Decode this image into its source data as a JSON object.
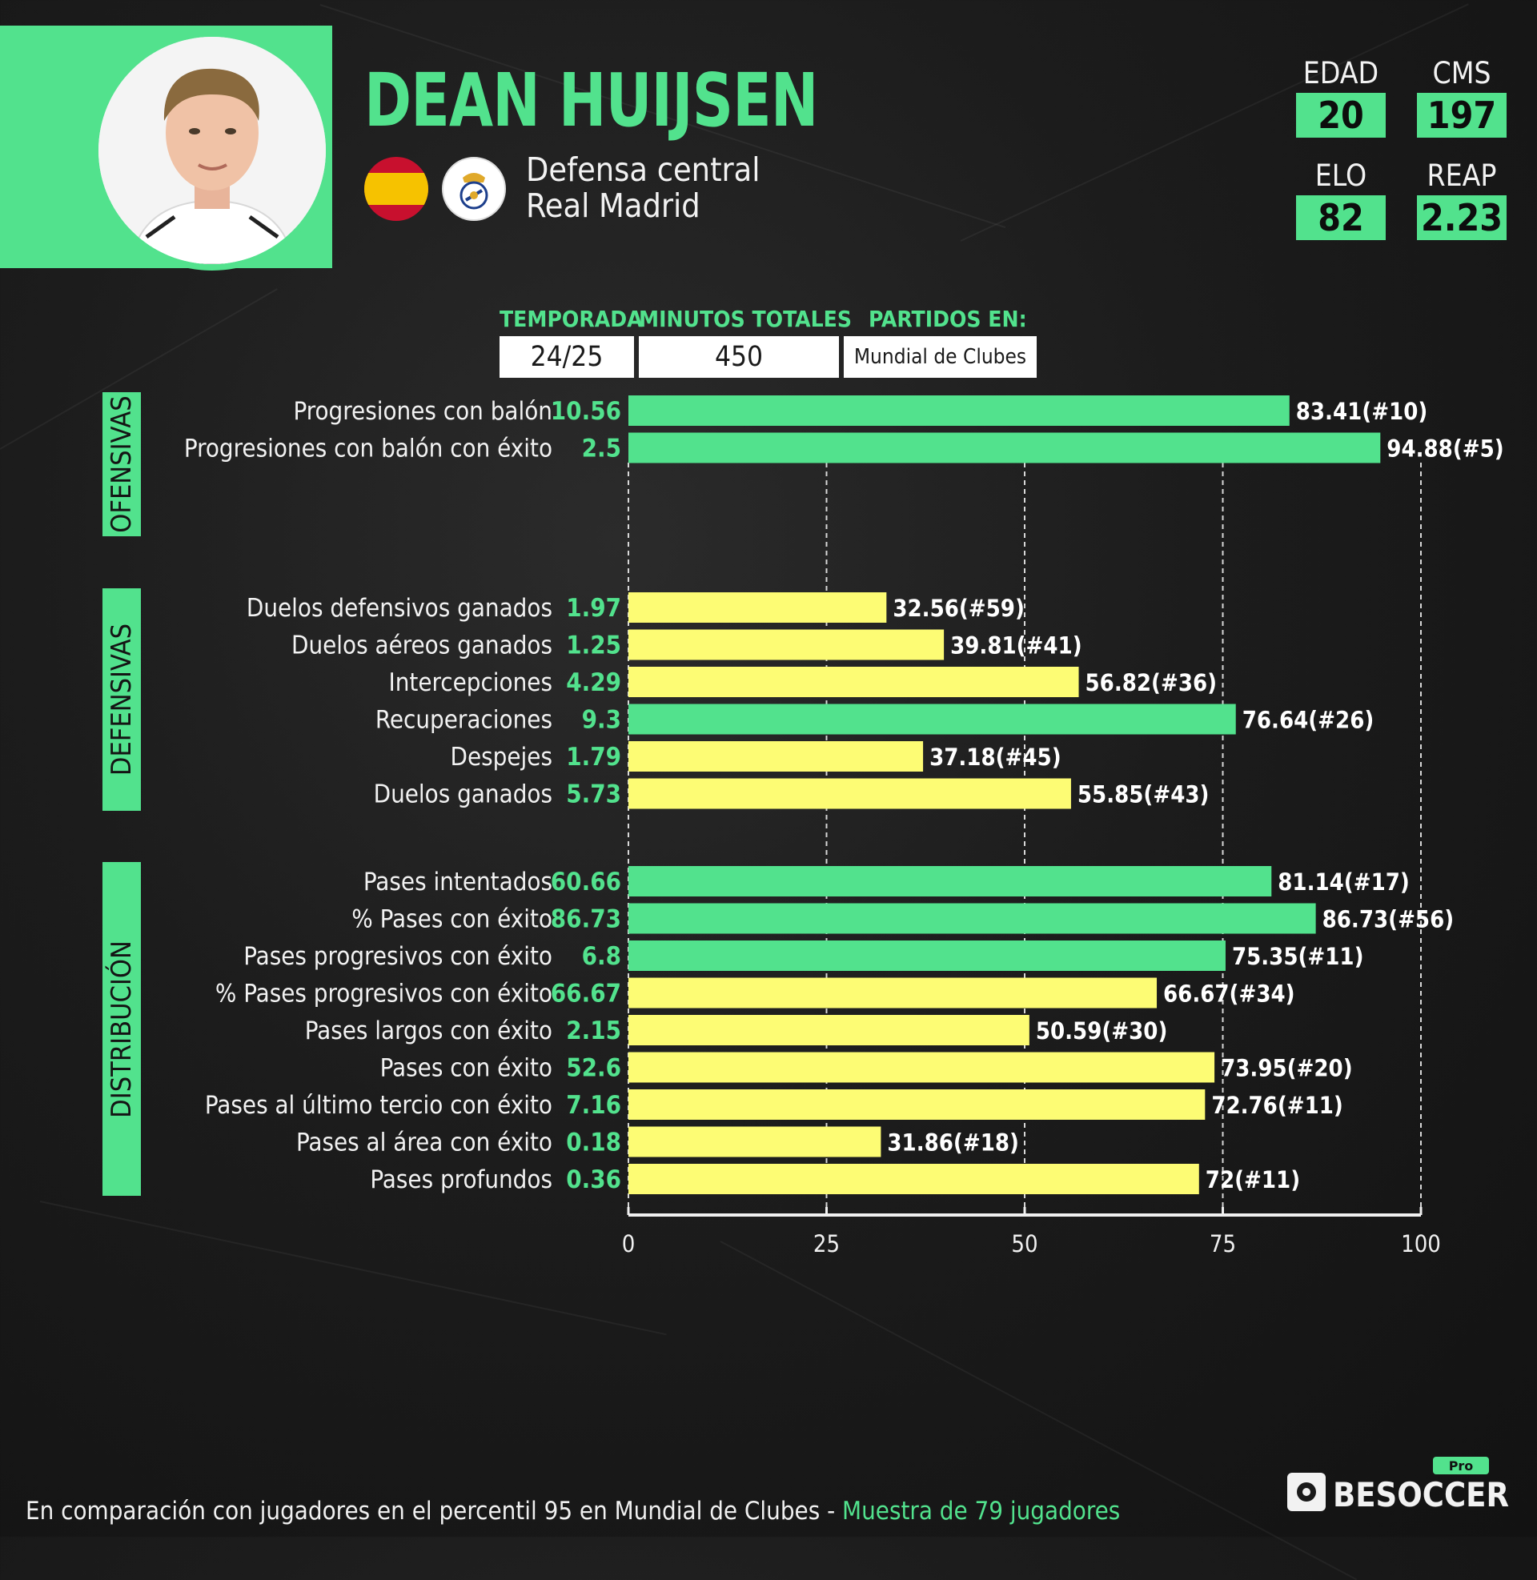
{
  "player": {
    "name": "DEAN HUIJSEN",
    "position": "Defensa central",
    "club": "Real Madrid"
  },
  "stats": {
    "edad": {
      "label": "EDAD",
      "value": "20"
    },
    "cms": {
      "label": "CMS",
      "value": "197"
    },
    "elo": {
      "label": "ELO",
      "value": "82"
    },
    "reap": {
      "label": "REAP",
      "value": "2.23"
    }
  },
  "season_info": {
    "season_header": "TEMPORADA",
    "season_value": "24/25",
    "minutes_header": "MINUTOS TOTALES",
    "minutes_value": "450",
    "matches_header": "PARTIDOS EN:",
    "matches_value": "Mundial de Clubes"
  },
  "chart_data": {
    "type": "bar",
    "orientation": "horizontal",
    "xlim": [
      0,
      100
    ],
    "xticks": [
      0,
      25,
      50,
      75,
      100
    ],
    "grid": "vertical dashed",
    "colors": {
      "top": "#52e28d",
      "other": "#fdfc74"
    },
    "groups": [
      {
        "name": "OFENSIVAS",
        "metrics": [
          {
            "label": "Progresiones con balón",
            "raw": "10.56",
            "percentile": 83.41,
            "rank": "(#10)",
            "color": "green"
          },
          {
            "label": "Progresiones con balón con éxito",
            "raw": "2.5",
            "percentile": 94.88,
            "rank": "(#5)",
            "color": "green"
          }
        ]
      },
      {
        "name": "DEFENSIVAS",
        "metrics": [
          {
            "label": "Duelos defensivos ganados",
            "raw": "1.97",
            "percentile": 32.56,
            "rank": "(#59)",
            "color": "yellow"
          },
          {
            "label": "Duelos aéreos ganados",
            "raw": "1.25",
            "percentile": 39.81,
            "rank": "(#41)",
            "color": "yellow"
          },
          {
            "label": "Intercepciones",
            "raw": "4.29",
            "percentile": 56.82,
            "rank": "(#36)",
            "color": "yellow"
          },
          {
            "label": "Recuperaciones",
            "raw": "9.3",
            "percentile": 76.64,
            "rank": "(#26)",
            "color": "green"
          },
          {
            "label": "Despejes",
            "raw": "1.79",
            "percentile": 37.18,
            "rank": "(#45)",
            "color": "yellow"
          },
          {
            "label": "Duelos ganados",
            "raw": "5.73",
            "percentile": 55.85,
            "rank": "(#43)",
            "color": "yellow"
          }
        ]
      },
      {
        "name": "DISTRIBUCIÓN",
        "metrics": [
          {
            "label": "Pases intentados",
            "raw": "60.66",
            "percentile": 81.14,
            "rank": "(#17)",
            "color": "green"
          },
          {
            "label": "% Pases con éxito",
            "raw": "86.73",
            "percentile": 86.73,
            "rank": "(#56)",
            "color": "green"
          },
          {
            "label": "Pases progresivos con éxito",
            "raw": "6.8",
            "percentile": 75.35,
            "rank": "(#11)",
            "color": "green"
          },
          {
            "label": "% Pases progresivos con éxito",
            "raw": "66.67",
            "percentile": 66.67,
            "rank": "(#34)",
            "color": "yellow"
          },
          {
            "label": "Pases largos con éxito",
            "raw": "2.15",
            "percentile": 50.59,
            "rank": "(#30)",
            "color": "yellow"
          },
          {
            "label": "Pases con éxito",
            "raw": "52.6",
            "percentile": 73.95,
            "rank": "(#20)",
            "color": "yellow"
          },
          {
            "label": "Pases al último tercio con éxito",
            "raw": "7.16",
            "percentile": 72.76,
            "rank": "(#11)",
            "color": "yellow"
          },
          {
            "label": "Pases al área con éxito",
            "raw": "0.18",
            "percentile": 31.86,
            "rank": "(#18)",
            "color": "yellow"
          },
          {
            "label": "Pases profundos",
            "raw": "0.36",
            "percentile": 72,
            "rank": "(#11)",
            "color": "yellow"
          }
        ]
      }
    ]
  },
  "footer": {
    "text": "En comparación con jugadores en el percentil 95 en Mundial de Clubes - ",
    "sample": "Muestra de 79 jugadores"
  },
  "brand": {
    "pro": "Pro",
    "name": "BESOCCER"
  }
}
